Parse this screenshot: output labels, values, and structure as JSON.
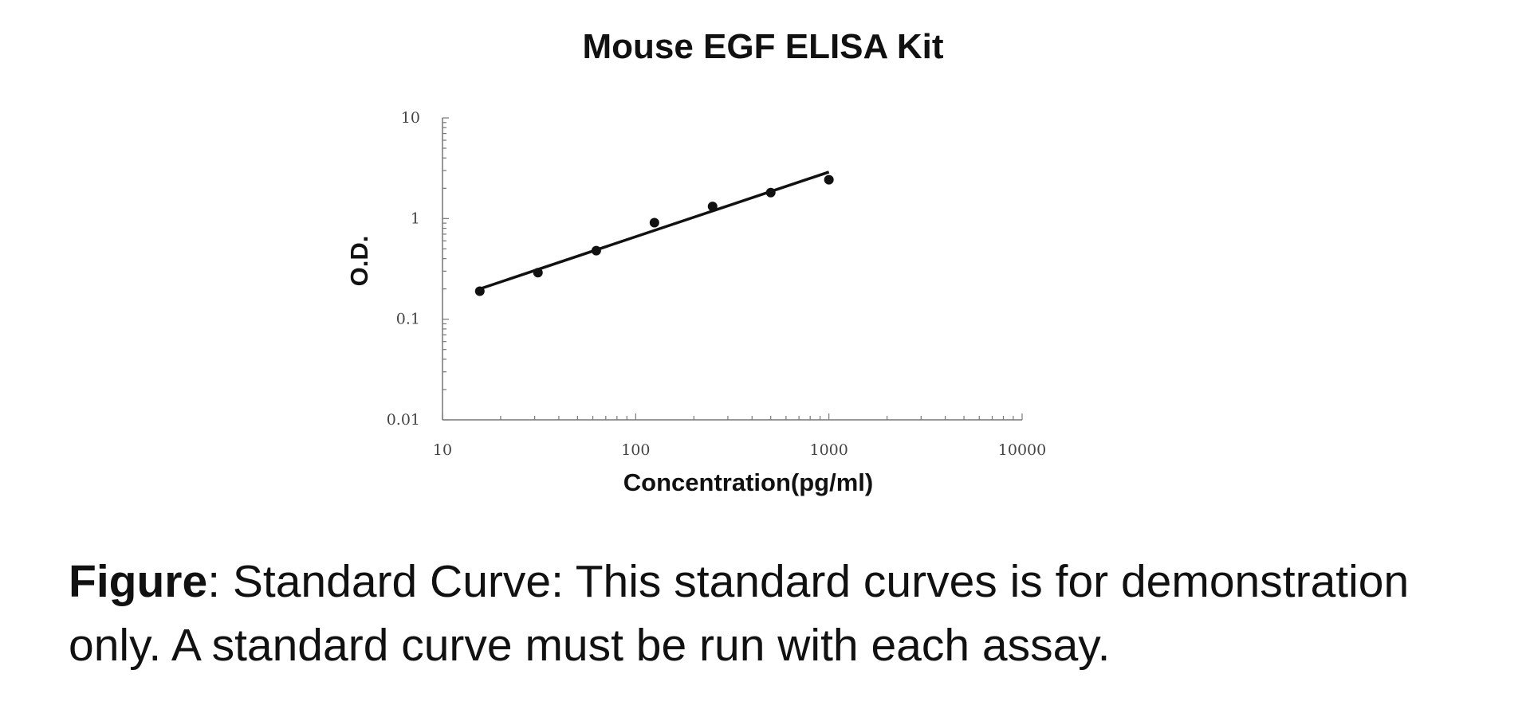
{
  "chart_data": {
    "type": "scatter",
    "title": "Mouse EGF ELISA Kit",
    "xlabel": "Concentration(pg/ml)",
    "ylabel": "O.D.",
    "x_scale": "log",
    "y_scale": "log",
    "xlim": [
      10,
      10000
    ],
    "ylim": [
      0.01,
      10
    ],
    "x_tick_labels": [
      "10",
      "100",
      "1000",
      "10000"
    ],
    "y_tick_labels": [
      "10",
      "1",
      "0.1",
      "0.01"
    ],
    "grid": false,
    "legend": "none",
    "series": [
      {
        "x": [
          15.6,
          31.2,
          62.5,
          125,
          250,
          500,
          1000
        ],
        "y": [
          0.19,
          0.29,
          0.48,
          0.91,
          1.32,
          1.81,
          2.43
        ]
      }
    ],
    "fit_line": {
      "x": [
        15.6,
        1000
      ],
      "y": [
        0.2,
        2.9
      ]
    }
  },
  "caption": {
    "lead": "Figure",
    "text": ": Standard Curve: This standard curves is for demonstration only. A standard curve must be run with each assay."
  }
}
